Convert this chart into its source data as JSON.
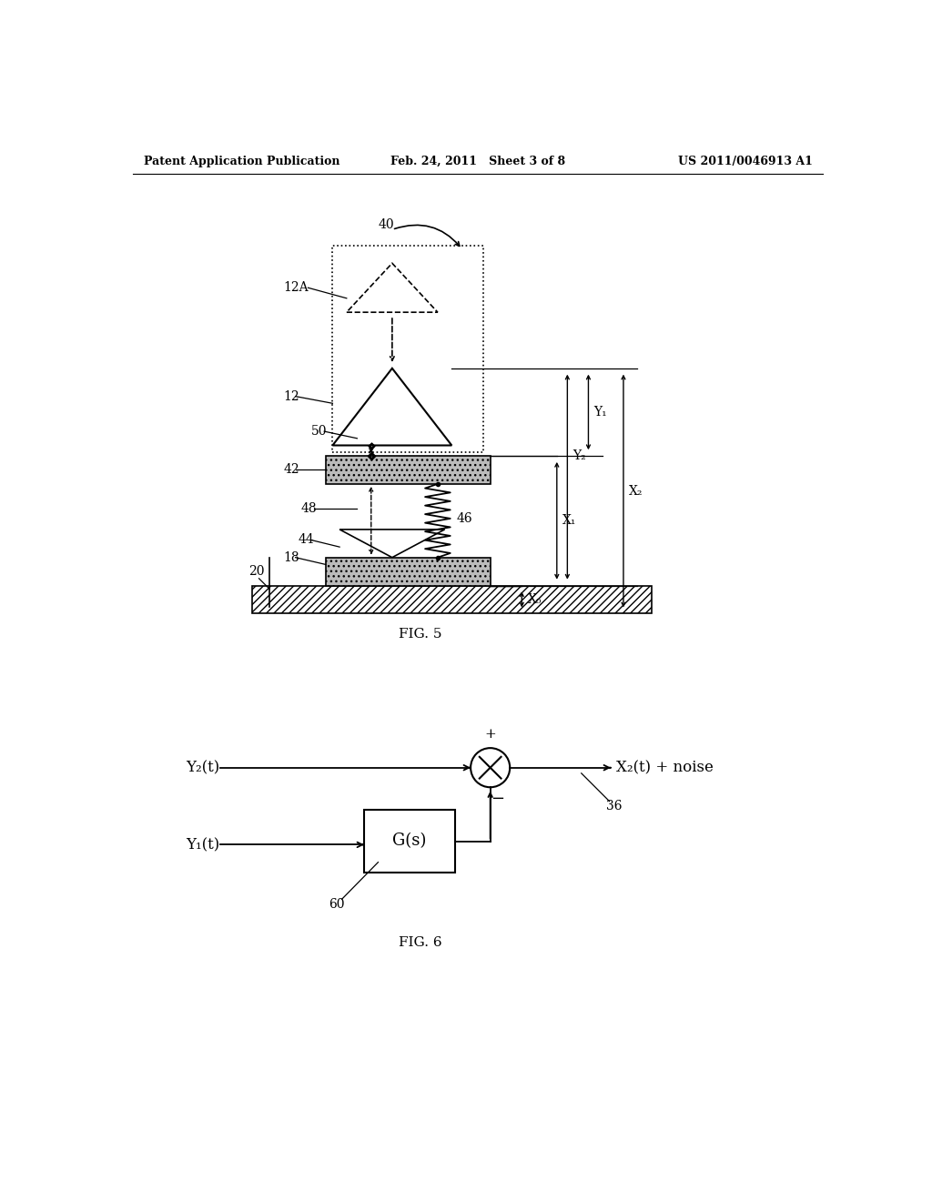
{
  "header_left": "Patent Application Publication",
  "header_center": "Feb. 24, 2011   Sheet 3 of 8",
  "header_right": "US 2011/0046913 A1",
  "fig5_label": "FIG. 5",
  "fig6_label": "FIG. 6",
  "background_color": "#ffffff"
}
